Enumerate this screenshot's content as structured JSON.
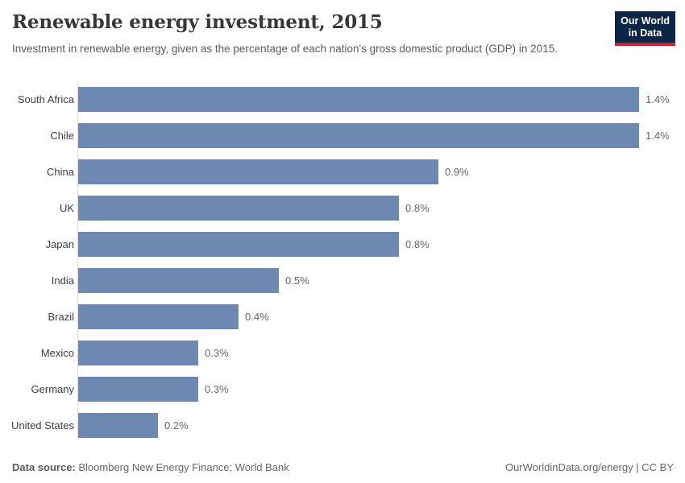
{
  "header": {
    "title": "Renewable energy investment, 2015",
    "subtitle": "Investment in renewable energy, given as the percentage of each nation's gross domestic product (GDP) in 2015.",
    "logo": {
      "line1": "Our World",
      "line2": "in Data"
    }
  },
  "colors": {
    "bar": "#6e89b1",
    "logo_background": "#0c2647",
    "logo_underline": "#cf212e"
  },
  "chart_data": {
    "type": "bar",
    "orientation": "horizontal",
    "title": "Renewable energy investment, 2015",
    "subtitle": "Investment in renewable energy, given as the percentage of each nation's gross domestic product (GDP) in 2015.",
    "categories": [
      "South Africa",
      "Chile",
      "China",
      "UK",
      "Japan",
      "India",
      "Brazil",
      "Mexico",
      "Germany",
      "United States"
    ],
    "values": [
      1.4,
      1.4,
      0.9,
      0.8,
      0.8,
      0.5,
      0.4,
      0.3,
      0.3,
      0.2
    ],
    "value_labels": [
      "1.4%",
      "1.4%",
      "0.9%",
      "0.8%",
      "0.8%",
      "0.5%",
      "0.4%",
      "0.3%",
      "0.3%",
      "0.2%"
    ],
    "unit": "%",
    "xlabel": "",
    "ylabel": "",
    "xlim": [
      0,
      1.4
    ],
    "grid": false,
    "legend": false,
    "bar_color": "#6e89b1"
  },
  "footer": {
    "source_label": "Data source:",
    "source_text": " Bloomberg New Energy Finance; World Bank",
    "credit": "OurWorldinData.org/energy | CC BY"
  }
}
